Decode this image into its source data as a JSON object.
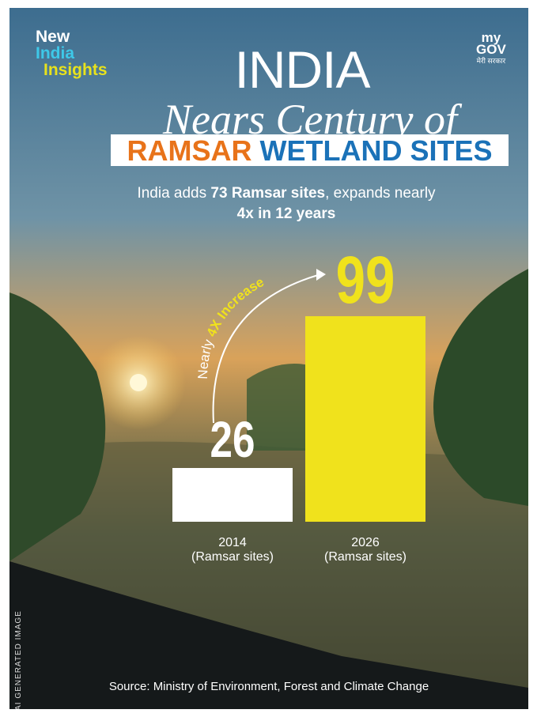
{
  "header": {
    "brand": [
      "New",
      "India",
      "Insights"
    ],
    "gov_logo": [
      "my",
      "GOV"
    ],
    "gov_tagline": "मेरी सरकार",
    "badge": "AI GENERATED IMAGE"
  },
  "chart_data": {
    "type": "bar",
    "title": "INDIA",
    "title_line2": "Nears Century of",
    "title_banner": [
      "RAMSAR",
      "WETLAND SITES"
    ],
    "subtitle_parts": [
      "India adds ",
      "73 Ramsar sites",
      ", expands nearly",
      "4x in 12 years"
    ],
    "annotation": [
      "Nearly ",
      "4X Increase"
    ],
    "categories": [
      "2014",
      "2026"
    ],
    "category_unit": "(Ramsar sites)",
    "values": [
      26,
      99
    ],
    "colors": [
      "#ffffff",
      "#f0e21c"
    ],
    "source": "Source: Ministry of Environment, Forest and Climate Change"
  }
}
